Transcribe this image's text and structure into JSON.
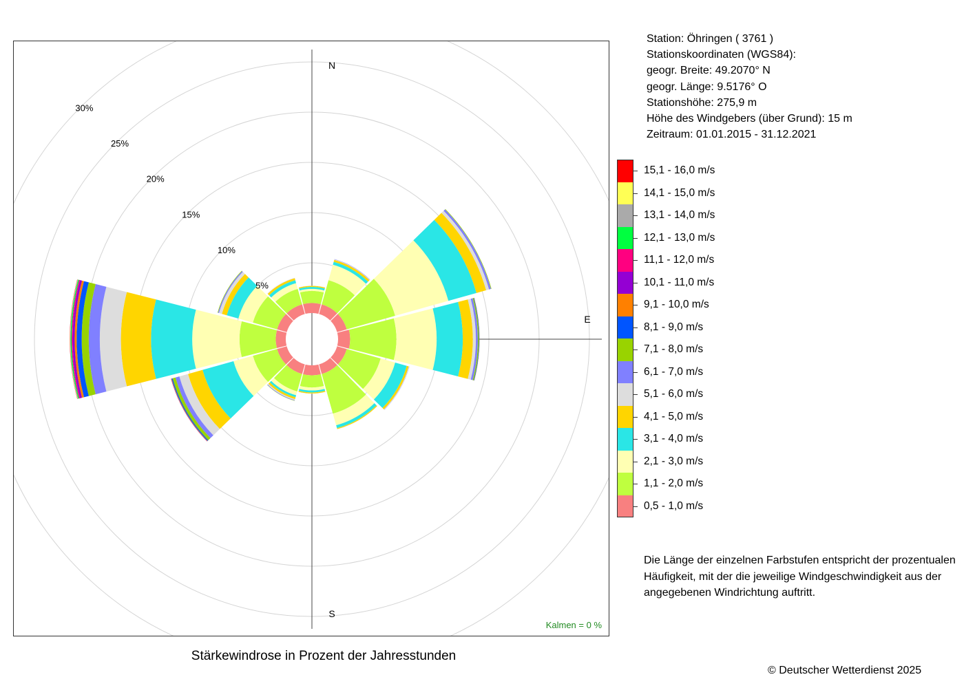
{
  "chart_data": {
    "type": "wind-rose",
    "title": "Stärkewindrose in Prozent der Jahresstunden",
    "radial_axis": {
      "unit": "%",
      "ticks": [
        5,
        10,
        15,
        20,
        25,
        30
      ],
      "tick_labels": [
        "5%",
        "10%",
        "15%",
        "20%",
        "25%",
        "30%"
      ],
      "max": 30
    },
    "compass_labels": [
      "N",
      "E",
      "S"
    ],
    "calm": {
      "label": "Kalmen",
      "text": "Kalmen  =  0 %",
      "value": 0
    },
    "directions_deg": [
      0,
      30,
      60,
      90,
      120,
      150,
      180,
      210,
      240,
      270,
      300,
      330
    ],
    "speed_classes": [
      {
        "label": "0,5 - 1,0 m/s",
        "color": "#F88080"
      },
      {
        "label": "1,1 - 2,0 m/s",
        "color": "#BFFF3F"
      },
      {
        "label": "2,1 - 3,0 m/s",
        "color": "#FFFFB3"
      },
      {
        "label": "3,1 - 4,0 m/s",
        "color": "#2AE6E6"
      },
      {
        "label": "4,1 - 5,0 m/s",
        "color": "#FFD500"
      },
      {
        "label": "5,1 - 6,0 m/s",
        "color": "#DDDDDD"
      },
      {
        "label": "6,1 - 7,0 m/s",
        "color": "#8080FF"
      },
      {
        "label": "7,1 - 8,0 m/s",
        "color": "#99D300"
      },
      {
        "label": "8,1 - 9,0 m/s",
        "color": "#0055FF"
      },
      {
        "label": "9,1 - 10,0 m/s",
        "color": "#FF8000"
      },
      {
        "label": "10,1 - 11,0 m/s",
        "color": "#9400D3"
      },
      {
        "label": "11,1 - 12,0 m/s",
        "color": "#FF0080"
      },
      {
        "label": "12,1 - 13,0 m/s",
        "color": "#00FF40"
      },
      {
        "label": "13,1 - 14,0 m/s",
        "color": "#AAAAAA"
      },
      {
        "label": "14,1 - 15,0 m/s",
        "color": "#FFFF55"
      },
      {
        "label": "15,1 - 16,0 m/s",
        "color": "#FF0000"
      }
    ],
    "series": [
      {
        "direction": 0,
        "values": [
          1.0,
          1.2,
          0.2,
          0.2,
          0.1,
          0.02,
          0,
          0,
          0,
          0,
          0,
          0,
          0,
          0,
          0,
          0
        ]
      },
      {
        "direction": 30,
        "values": [
          1.0,
          2.5,
          1.6,
          0.3,
          0.2,
          0.05,
          0.03,
          0,
          0,
          0,
          0,
          0,
          0,
          0,
          0,
          0
        ]
      },
      {
        "direction": 60,
        "values": [
          1.0,
          5.0,
          5.5,
          2.9,
          1.0,
          0.3,
          0.2,
          0.05,
          0,
          0,
          0,
          0,
          0,
          0,
          0,
          0
        ]
      },
      {
        "direction": 90,
        "values": [
          1.2,
          4.6,
          4.0,
          2.6,
          1.0,
          0.3,
          0.2,
          0.1,
          0.05,
          0.02,
          0,
          0,
          0,
          0,
          0,
          0
        ]
      },
      {
        "direction": 120,
        "values": [
          1.0,
          3.5,
          1.5,
          1.2,
          0.2,
          0.05,
          0.02,
          0,
          0,
          0,
          0,
          0,
          0,
          0,
          0,
          0
        ]
      },
      {
        "direction": 150,
        "values": [
          1.0,
          4.1,
          1.2,
          0.3,
          0.1,
          0.02,
          0,
          0,
          0,
          0,
          0,
          0,
          0,
          0,
          0,
          0
        ]
      },
      {
        "direction": 180,
        "values": [
          1.0,
          1.2,
          0.3,
          0.2,
          0.1,
          0.02,
          0,
          0,
          0,
          0,
          0,
          0,
          0,
          0,
          0,
          0
        ]
      },
      {
        "direction": 210,
        "values": [
          1.0,
          1.8,
          0.4,
          0.2,
          0.2,
          0.1,
          0.05,
          0.02,
          0,
          0,
          0,
          0,
          0,
          0,
          0,
          0
        ]
      },
      {
        "direction": 240,
        "values": [
          1.0,
          2.5,
          2.0,
          3.2,
          1.5,
          0.9,
          0.4,
          0.3,
          0.1,
          0.05,
          0.02,
          0,
          0,
          0,
          0,
          0
        ]
      },
      {
        "direction": 270,
        "values": [
          1.0,
          3.6,
          4.7,
          4.1,
          3.0,
          2.1,
          1.1,
          0.7,
          0.5,
          0.2,
          0.2,
          0.1,
          0.1,
          0.05,
          0.02,
          0.02
        ]
      },
      {
        "direction": 300,
        "values": [
          1.0,
          2.5,
          1.5,
          1.2,
          0.5,
          0.3,
          0.1,
          0.05,
          0,
          0,
          0,
          0,
          0,
          0,
          0,
          0
        ]
      },
      {
        "direction": 330,
        "values": [
          1.0,
          1.6,
          0.6,
          0.3,
          0.2,
          0.05,
          0,
          0,
          0,
          0,
          0,
          0,
          0,
          0,
          0,
          0
        ]
      }
    ]
  },
  "station_info": {
    "station": "Station:  Öhringen  ( 3761 )",
    "coords_heading": "Stationskoordinaten (WGS84):",
    "latitude": "geogr. Breite: 49.2070° N",
    "longitude": "geogr. Länge:   9.5176° O",
    "elevation": "Stationshöhe: 275,9 m",
    "sensor_height": "Höhe des Windgebers (über Grund): 15 m",
    "period": "Zeitraum: 01.01.2015 - 31.12.2021"
  },
  "note": {
    "line1": "Die Länge der einzelnen Farbstufen entspricht der prozentualen",
    "line2": "Häufigkeit, mit der die jeweilige Windgeschwindigkeit aus der",
    "line3": "angegebenen Windrichtung auftritt."
  },
  "copyright": "© Deutscher Wetterdienst  2025"
}
